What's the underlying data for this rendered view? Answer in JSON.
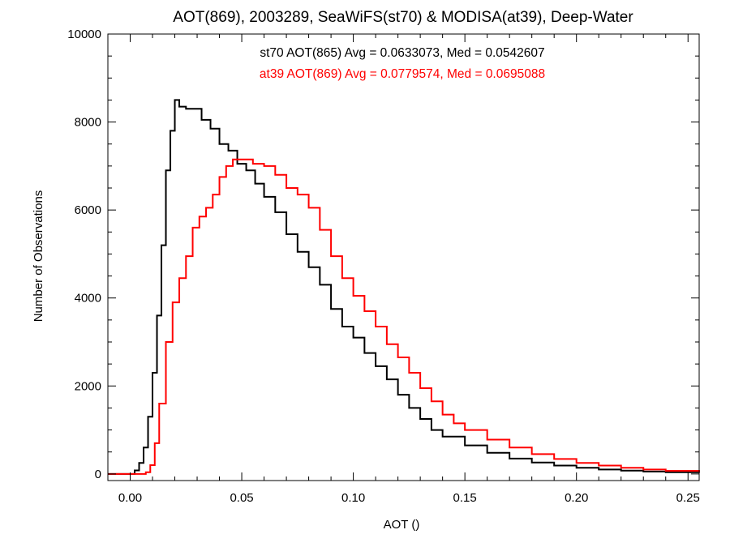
{
  "chart_data": {
    "type": "line",
    "title": "AOT(869), 2003289, SeaWiFS(st70) & MODISA(at39), Deep-Water",
    "xlabel": "AOT ()",
    "ylabel": "Number of Observations",
    "xlim": [
      -0.01,
      0.255
    ],
    "ylim": [
      -150,
      10000
    ],
    "x_ticks": [
      0.0,
      0.05,
      0.1,
      0.15,
      0.2,
      0.25
    ],
    "x_tick_labels": [
      "0.00",
      "0.05",
      "0.10",
      "0.15",
      "0.20",
      "0.25"
    ],
    "y_ticks": [
      0,
      2000,
      4000,
      6000,
      8000,
      10000
    ],
    "y_tick_labels": [
      "0",
      "2000",
      "4000",
      "6000",
      "8000",
      "10000"
    ],
    "grid": false,
    "annotations": [
      {
        "text": "st70 AOT(865) Avg = 0.0633073, Med = 0.0542607",
        "color": "#000000"
      },
      {
        "text": "at39 AOT(869) Avg = 0.0779574, Med = 0.0695088",
        "color": "#ff0000"
      }
    ],
    "series": [
      {
        "color": "#000000",
        "x": [
          -0.01,
          0.0,
          0.002,
          0.004,
          0.006,
          0.008,
          0.01,
          0.012,
          0.014,
          0.016,
          0.018,
          0.02,
          0.022,
          0.025,
          0.028,
          0.032,
          0.036,
          0.04,
          0.044,
          0.048,
          0.052,
          0.056,
          0.06,
          0.065,
          0.07,
          0.075,
          0.08,
          0.085,
          0.09,
          0.095,
          0.1,
          0.105,
          0.11,
          0.115,
          0.12,
          0.125,
          0.13,
          0.135,
          0.14,
          0.15,
          0.16,
          0.17,
          0.18,
          0.19,
          0.2,
          0.21,
          0.22,
          0.23,
          0.24,
          0.255
        ],
        "y": [
          0,
          0,
          80,
          250,
          600,
          1300,
          2300,
          3600,
          5200,
          6900,
          7800,
          8500,
          8350,
          8300,
          8300,
          8050,
          7850,
          7500,
          7350,
          7050,
          6900,
          6600,
          6300,
          5950,
          5450,
          5050,
          4700,
          4300,
          3750,
          3350,
          3100,
          2750,
          2450,
          2150,
          1800,
          1500,
          1250,
          1000,
          850,
          650,
          480,
          350,
          260,
          190,
          140,
          100,
          75,
          55,
          40,
          30
        ]
      },
      {
        "color": "#ff0000",
        "x": [
          -0.01,
          0.005,
          0.007,
          0.009,
          0.011,
          0.013,
          0.016,
          0.019,
          0.022,
          0.025,
          0.028,
          0.031,
          0.034,
          0.037,
          0.04,
          0.043,
          0.046,
          0.05,
          0.055,
          0.06,
          0.065,
          0.07,
          0.075,
          0.08,
          0.085,
          0.09,
          0.095,
          0.1,
          0.105,
          0.11,
          0.115,
          0.12,
          0.125,
          0.13,
          0.135,
          0.14,
          0.145,
          0.15,
          0.16,
          0.17,
          0.18,
          0.19,
          0.2,
          0.21,
          0.22,
          0.23,
          0.24,
          0.255
        ],
        "y": [
          0,
          0,
          40,
          200,
          700,
          1600,
          3000,
          3900,
          4450,
          4950,
          5600,
          5850,
          6050,
          6350,
          6750,
          7000,
          7150,
          7150,
          7050,
          7000,
          6800,
          6500,
          6350,
          6050,
          5550,
          4950,
          4450,
          4050,
          3700,
          3350,
          2950,
          2650,
          2300,
          1950,
          1650,
          1350,
          1150,
          1000,
          780,
          600,
          450,
          340,
          250,
          190,
          140,
          100,
          70,
          45
        ]
      }
    ]
  }
}
